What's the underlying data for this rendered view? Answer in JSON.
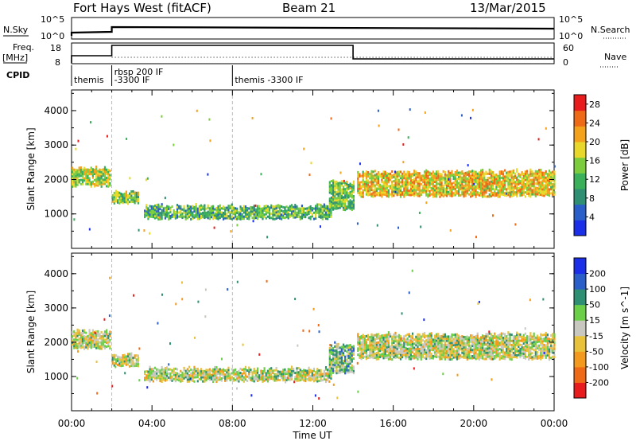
{
  "header": {
    "station": "Fort Hays West (fitACF)",
    "beam": "Beam 21",
    "date": "13/Mar/2015"
  },
  "strip": {
    "nsky_label": "N.Sky",
    "nsky_ticks": [
      "10^5",
      "10^0"
    ],
    "nsearch_ticks": [
      "10^5",
      "10^0"
    ],
    "nsearch_label": "N.Search",
    "freq_label": [
      "Freq.",
      "[MHz]"
    ],
    "freq_ticks": [
      "18",
      "8"
    ],
    "nave_ticks": [
      "60",
      "0"
    ],
    "nave_label": "Nave",
    "cpid_label": "CPID",
    "cpid_entries": [
      {
        "text": "themis",
        "x": 0.0
      },
      {
        "text": "rbsp 200 IF",
        "x": 2.0
      },
      {
        "text": "-3300 IF",
        "x": 2.0
      },
      {
        "text": "themis -3300 IF",
        "x": 8.0
      }
    ]
  },
  "xaxis": {
    "label": "Time UT",
    "ticks": [
      "00:00",
      "04:00",
      "08:00",
      "12:00",
      "16:00",
      "20:00",
      "00:00"
    ]
  },
  "colors": {
    "power": [
      "#1b2ee8",
      "#2a5ec8",
      "#2f8f72",
      "#3bb05a",
      "#7ccd3e",
      "#e8d82a",
      "#f4a21c",
      "#ee6a16",
      "#e81c1c"
    ],
    "velocity": [
      "#e81c1c",
      "#ee6a16",
      "#f39a1e",
      "#e8c23a",
      "#c8c8c0",
      "#6ccf48",
      "#2f8f72",
      "#2a5ec8",
      "#1b2ee8"
    ]
  },
  "chart_data": [
    {
      "type": "heatmap",
      "title": "Fort Hays West (fitACF)",
      "subtitle": "Beam 21",
      "ylabel": "Slant Range [km]",
      "xlabel": "Time UT",
      "xlim": [
        0,
        24
      ],
      "ylim": [
        0,
        4600
      ],
      "yticks": [
        "1000",
        "2000",
        "3000",
        "4000"
      ],
      "colorbar": {
        "label": "Power [dB]",
        "ticks": [
          "4",
          "8",
          "12",
          "16",
          "20",
          "24",
          "28"
        ],
        "range": [
          0,
          30
        ]
      },
      "bands": [
        {
          "t0": 0.0,
          "t1": 1.9,
          "r_lo": 1800,
          "r_hi": 2300,
          "level": 0.55
        },
        {
          "t0": 2.0,
          "t1": 3.3,
          "r_lo": 1300,
          "r_hi": 1600,
          "level": 0.5
        },
        {
          "t0": 3.6,
          "t1": 12.9,
          "r_lo": 850,
          "r_hi": 1200,
          "level": 0.4
        },
        {
          "t0": 12.8,
          "t1": 14.0,
          "r_lo": 1100,
          "r_hi": 1900,
          "level": 0.45
        },
        {
          "t0": 14.2,
          "t1": 24.0,
          "r_lo": 1500,
          "r_hi": 2200,
          "level": 0.65
        }
      ]
    },
    {
      "type": "heatmap",
      "ylabel": "Slant Range [km]",
      "xlabel": "Time UT",
      "xlim": [
        0,
        24
      ],
      "ylim": [
        0,
        4600
      ],
      "yticks": [
        "1000",
        "2000",
        "3000",
        "4000"
      ],
      "colorbar": {
        "label": "Velocity [m s^-1]",
        "ticks": [
          "200",
          "100",
          "50",
          "15",
          "-15",
          "-50",
          "-100",
          "-200"
        ],
        "range": [
          -250,
          250
        ]
      },
      "bands": [
        {
          "t0": 0.0,
          "t1": 1.9,
          "r_lo": 1800,
          "r_hi": 2300,
          "level": 0.5
        },
        {
          "t0": 2.0,
          "t1": 3.3,
          "r_lo": 1300,
          "r_hi": 1600,
          "level": 0.5
        },
        {
          "t0": 3.6,
          "t1": 12.9,
          "r_lo": 850,
          "r_hi": 1200,
          "level": 0.5
        },
        {
          "t0": 12.8,
          "t1": 14.0,
          "r_lo": 1100,
          "r_hi": 1900,
          "level": 0.62
        },
        {
          "t0": 14.2,
          "t1": 24.0,
          "r_lo": 1500,
          "r_hi": 2200,
          "level": 0.5
        }
      ]
    }
  ]
}
